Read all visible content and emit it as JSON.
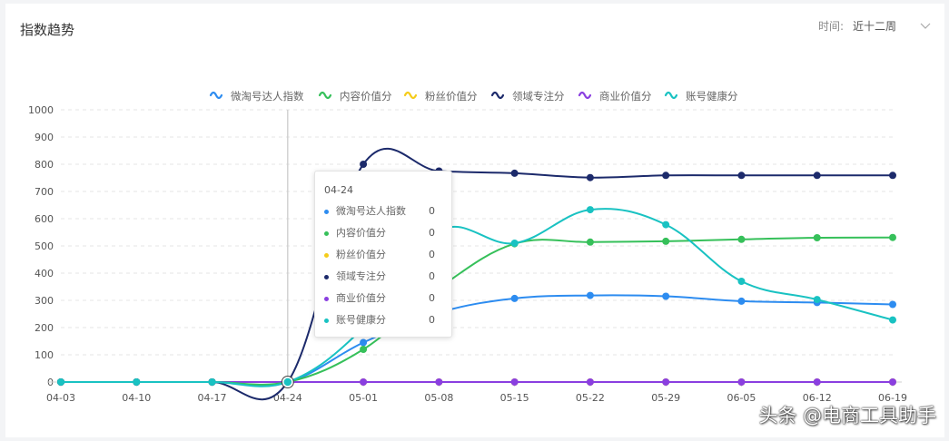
{
  "header": {
    "title": "指数趋势",
    "time_label": "时间:",
    "time_value": "近十二周"
  },
  "chart_data": {
    "type": "line",
    "title": "",
    "xlabel": "",
    "ylabel": "",
    "categories": [
      "04-03",
      "04-10",
      "04-17",
      "04-24",
      "05-01",
      "05-08",
      "05-15",
      "05-22",
      "05-29",
      "06-05",
      "06-12",
      "06-19"
    ],
    "ylim": [
      0,
      1000
    ],
    "yticks": [
      "0",
      "100",
      "200",
      "300",
      "400",
      "500",
      "600",
      "700",
      "800",
      "900",
      "1000"
    ],
    "grid": true,
    "legend_position": "top",
    "series": [
      {
        "name": "微淘号达人指数",
        "color": "#2d8cf0",
        "values": [
          0,
          0,
          0,
          0,
          145,
          255,
          307,
          318,
          315,
          297,
          292,
          285
        ]
      },
      {
        "name": "内容价值分",
        "color": "#36c05a",
        "values": [
          0,
          0,
          0,
          0,
          120,
          345,
          508,
          514,
          517,
          524,
          530,
          531
        ]
      },
      {
        "name": "粉丝价值分",
        "color": "#f5cc1a",
        "values": [
          0,
          0,
          0,
          0,
          0,
          0,
          0,
          0,
          0,
          0,
          0,
          0
        ]
      },
      {
        "name": "领域专注分",
        "color": "#1c2a6b",
        "values": [
          0,
          0,
          0,
          0,
          800,
          775,
          767,
          751,
          759,
          759,
          759,
          759
        ]
      },
      {
        "name": "商业价值分",
        "color": "#8a3fe0",
        "values": [
          0,
          0,
          0,
          0,
          0,
          0,
          0,
          0,
          0,
          0,
          0,
          0
        ]
      },
      {
        "name": "账号健康分",
        "color": "#19c2c2",
        "values": [
          0,
          0,
          0,
          0,
          200,
          555,
          510,
          633,
          578,
          370,
          303,
          228
        ]
      }
    ],
    "highlight_index": 3
  },
  "tooltip": {
    "date": "04-24",
    "rows": [
      {
        "name": "微淘号达人指数",
        "value": "0"
      },
      {
        "name": "内容价值分",
        "value": "0"
      },
      {
        "name": "粉丝价值分",
        "value": "0"
      },
      {
        "name": "领域专注分",
        "value": "0"
      },
      {
        "name": "商业价值分",
        "value": "0"
      },
      {
        "name": "账号健康分",
        "value": "0"
      }
    ]
  },
  "watermark": "头条 @电商工具助手"
}
